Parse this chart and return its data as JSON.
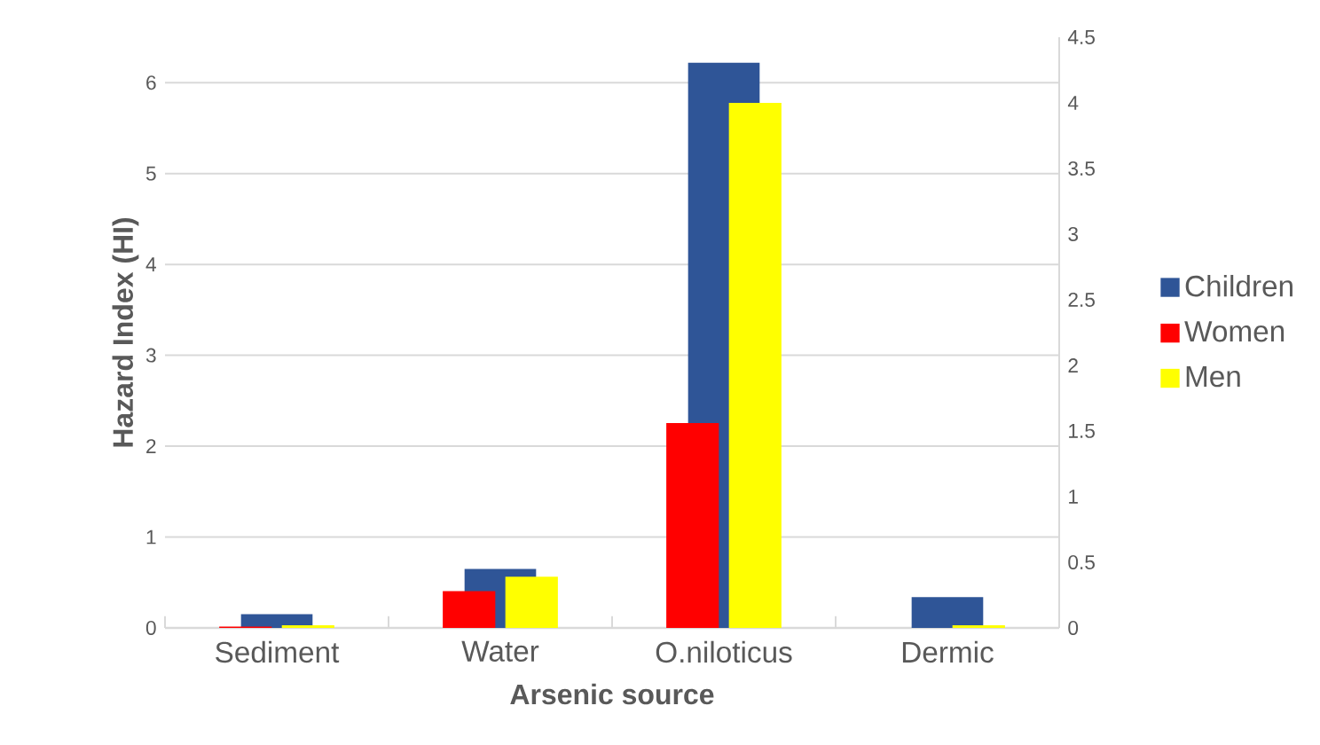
{
  "chart_data": {
    "type": "bar",
    "xlabel": "Arsenic source",
    "ylabel": "Hazard Index (HI)",
    "categories": [
      "Sediment",
      "Water",
      "O.niloticus",
      "Dermic"
    ],
    "series": [
      {
        "name": "Children",
        "color": "#2f5597",
        "values": [
          0.15,
          0.65,
          6.22,
          0.34
        ]
      },
      {
        "name": "Women",
        "color": "#ff0000",
        "axis": "y2",
        "values": [
          0.01,
          0.28,
          1.56,
          0
        ]
      },
      {
        "name": "Men",
        "color": "#ffff00",
        "axis": "y2",
        "values": [
          0.02,
          0.39,
          4.0,
          0.02
        ]
      }
    ],
    "ylim": [
      0,
      6.5
    ],
    "yticks": [
      0,
      1,
      2,
      3,
      4,
      5,
      6
    ],
    "y2lim": [
      0,
      4.5
    ],
    "y2ticks": [
      0,
      0.5,
      1,
      1.5,
      2,
      2.5,
      3,
      3.5,
      4,
      4.5
    ],
    "grid": "y",
    "legend": "right"
  }
}
